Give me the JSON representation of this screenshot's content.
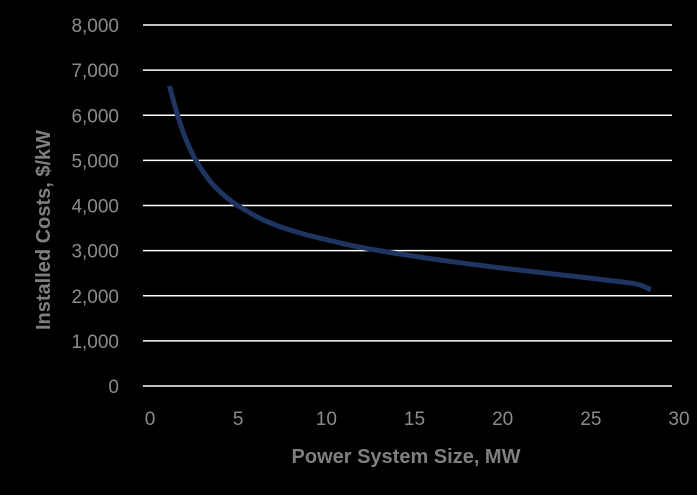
{
  "chart_data": {
    "type": "line",
    "title": "",
    "xlabel": "Power System Size, MW",
    "ylabel": "Installed Costs, $/kW",
    "xlim": [
      0,
      30
    ],
    "ylim": [
      0,
      8000
    ],
    "x_ticks": [
      "0",
      "5",
      "10",
      "15",
      "20",
      "25",
      "30"
    ],
    "y_ticks": [
      "0",
      "1,000",
      "2,000",
      "3,000",
      "4,000",
      "5,000",
      "6,000",
      "7,000",
      "8,000"
    ],
    "grid": "horizontal",
    "legend": "none",
    "series": [
      {
        "color": "#1f3461",
        "x": [
          1.5,
          2,
          2.5,
          3,
          3.5,
          4,
          5,
          6,
          7,
          8,
          9,
          10,
          12,
          14,
          16,
          18,
          20,
          22,
          24,
          26,
          28,
          28.8
        ],
        "y": [
          6650,
          5950,
          5400,
          5000,
          4700,
          4450,
          4100,
          3850,
          3650,
          3500,
          3380,
          3280,
          3100,
          2960,
          2840,
          2730,
          2630,
          2540,
          2450,
          2360,
          2260,
          2130
        ]
      }
    ]
  }
}
